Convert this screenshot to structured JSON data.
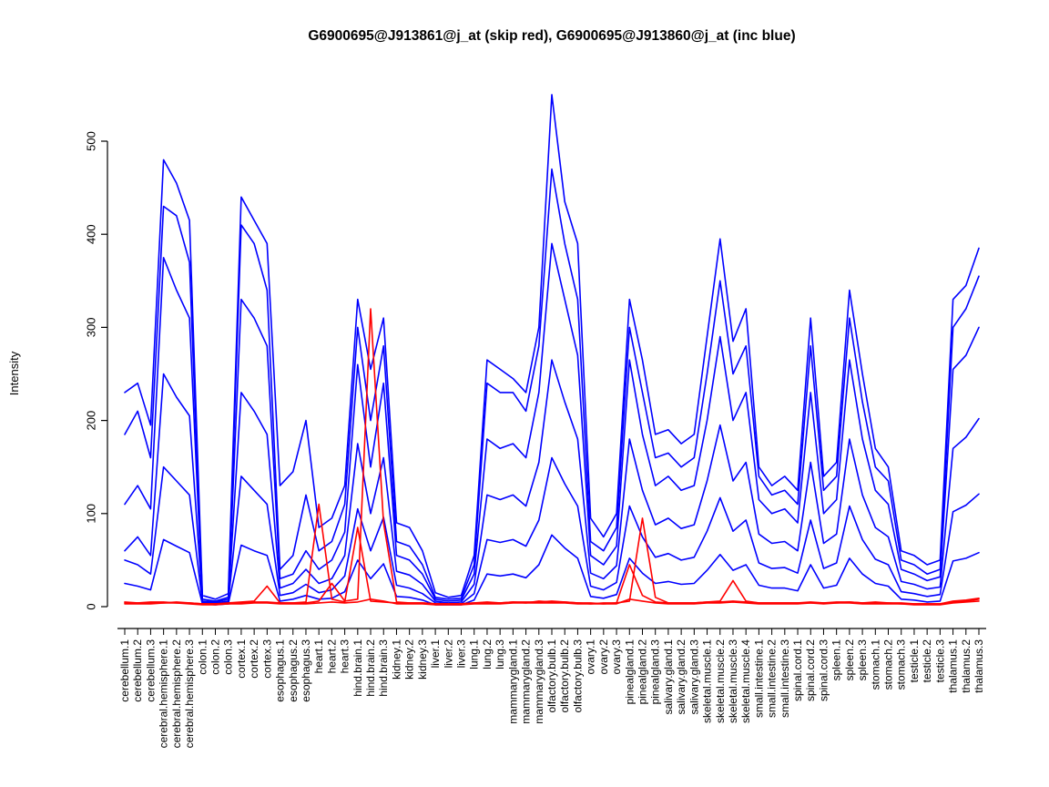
{
  "title": "G6900695@J913861@j_at (skip red), G6900695@J913860@j_at (inc blue)",
  "chart_data": {
    "type": "line",
    "title": "G6900695@J913861@j_at (skip red), G6900695@J913860@j_at (inc blue)",
    "xlabel": "",
    "ylabel": "Intensity",
    "ylim": [
      0,
      550
    ],
    "yticks": [
      0,
      100,
      200,
      300,
      400,
      500
    ],
    "grid": false,
    "legend_position": "none",
    "colors": {
      "skip": "#FF0000",
      "inc": "#0000FF"
    },
    "categories": [
      "cerebellum.1",
      "cerebellum.2",
      "cerebellum.3",
      "cerebral.hemisphere.1",
      "cerebral.hemisphere.2",
      "cerebral.hemisphere.3",
      "colon.1",
      "colon.2",
      "colon.3",
      "cortex.1",
      "cortex.2",
      "cortex.3",
      "esophagus.1",
      "esophagus.2",
      "esophagus.3",
      "heart.1",
      "heart.2",
      "heart.3",
      "hind.brain.1",
      "hind.brain.2",
      "hind.brain.3",
      "kidney.1",
      "kidney.2",
      "kidney.3",
      "liver.1",
      "liver.2",
      "liver.3",
      "lung.1",
      "lung.2",
      "lung.3",
      "mammarygland.1",
      "mammarygland.2",
      "mammarygland.3",
      "olfactory.bulb.1",
      "olfactory.bulb.2",
      "olfactory.bulb.3",
      "ovary.1",
      "ovary.2",
      "ovary.3",
      "pinealgland.1",
      "pinealgland.2",
      "pinealgland.3",
      "salivary.gland.1",
      "salivary.gland.2",
      "salivary.gland.3",
      "skeletal.muscle.1",
      "skeletal.muscle.2",
      "skeletal.muscle.3",
      "skeletal.muscle.4",
      "small.intestine.1",
      "small.intestine.2",
      "small.intestine.3",
      "spinal.cord.1",
      "spinal.cord.2",
      "spinal.cord.3",
      "spleen.1",
      "spleen.2",
      "spleen.3",
      "stomach.1",
      "stomach.2",
      "stomach.3",
      "testicle.1",
      "testicle.2",
      "testicle.3",
      "thalamus.1",
      "thalamus.2",
      "thalamus.3"
    ],
    "series": [
      {
        "name": "inc-1",
        "probe": "G6900695@J913860@j_at",
        "color": "#0000FF",
        "values": [
          230,
          240,
          195,
          480,
          455,
          415,
          12,
          8,
          14,
          440,
          415,
          390,
          130,
          145,
          200,
          85,
          95,
          130,
          330,
          255,
          310,
          90,
          85,
          60,
          15,
          10,
          12,
          55,
          265,
          255,
          245,
          230,
          300,
          550,
          435,
          390,
          95,
          75,
          100,
          330,
          265,
          185,
          190,
          175,
          185,
          290,
          395,
          285,
          320,
          150,
          130,
          140,
          125,
          310,
          140,
          155,
          340,
          250,
          170,
          150,
          60,
          55,
          45,
          50,
          330,
          345,
          385
        ]
      },
      {
        "name": "inc-2",
        "probe": "G6900695@J913860@j_at",
        "color": "#0000FF",
        "values": [
          185,
          210,
          160,
          430,
          420,
          370,
          8,
          6,
          10,
          410,
          390,
          340,
          40,
          55,
          120,
          60,
          70,
          110,
          300,
          200,
          280,
          70,
          65,
          45,
          10,
          8,
          9,
          45,
          240,
          230,
          230,
          210,
          280,
          470,
          390,
          330,
          70,
          60,
          85,
          300,
          230,
          160,
          165,
          150,
          160,
          250,
          350,
          250,
          280,
          140,
          120,
          125,
          110,
          280,
          125,
          140,
          310,
          220,
          150,
          135,
          50,
          45,
          35,
          40,
          300,
          320,
          355
        ]
      },
      {
        "name": "inc-3",
        "probe": "G6900695@J913860@j_at",
        "color": "#0000FF",
        "values": [
          110,
          130,
          105,
          375,
          340,
          310,
          6,
          5,
          8,
          330,
          310,
          280,
          30,
          35,
          60,
          40,
          50,
          80,
          260,
          150,
          240,
          55,
          50,
          35,
          8,
          6,
          7,
          35,
          180,
          170,
          175,
          160,
          230,
          390,
          330,
          270,
          55,
          45,
          65,
          265,
          185,
          130,
          140,
          125,
          130,
          200,
          290,
          200,
          230,
          115,
          100,
          105,
          90,
          230,
          100,
          115,
          265,
          180,
          125,
          110,
          40,
          35,
          28,
          32,
          255,
          270,
          300
        ]
      },
      {
        "name": "inc-4",
        "probe": "G6900695@J913860@j_at",
        "color": "#0000FF",
        "values": [
          60,
          75,
          55,
          250,
          225,
          205,
          5,
          4,
          6,
          230,
          210,
          185,
          20,
          25,
          40,
          25,
          30,
          55,
          175,
          100,
          160,
          38,
          34,
          24,
          6,
          4,
          5,
          24,
          120,
          115,
          120,
          108,
          155,
          265,
          220,
          180,
          36,
          30,
          44,
          180,
          125,
          88,
          95,
          84,
          88,
          135,
          195,
          135,
          155,
          78,
          68,
          70,
          60,
          155,
          68,
          78,
          180,
          120,
          85,
          75,
          27,
          24,
          19,
          21,
          170,
          182,
          202
        ]
      },
      {
        "name": "inc-5",
        "probe": "G6900695@J913860@j_at",
        "color": "#0000FF",
        "values": [
          50,
          45,
          35,
          150,
          135,
          120,
          4,
          3,
          5,
          140,
          125,
          110,
          12,
          15,
          24,
          15,
          18,
          33,
          105,
          60,
          96,
          23,
          20,
          14,
          4,
          3,
          3,
          14,
          72,
          69,
          72,
          65,
          93,
          160,
          132,
          108,
          22,
          18,
          26,
          108,
          75,
          53,
          57,
          50,
          53,
          81,
          117,
          81,
          93,
          47,
          41,
          42,
          36,
          93,
          41,
          47,
          108,
          72,
          51,
          45,
          16,
          14,
          11,
          13,
          102,
          109,
          121
        ]
      },
      {
        "name": "inc-6",
        "probe": "G6900695@J913860@j_at",
        "color": "#0000FF",
        "values": [
          25,
          22,
          18,
          72,
          65,
          58,
          3,
          2,
          3,
          66,
          60,
          55,
          6,
          8,
          12,
          8,
          9,
          16,
          50,
          30,
          46,
          11,
          10,
          7,
          2,
          2,
          2,
          7,
          35,
          33,
          35,
          31,
          45,
          77,
          63,
          52,
          11,
          9,
          13,
          52,
          36,
          25,
          27,
          24,
          25,
          39,
          56,
          39,
          45,
          23,
          20,
          20,
          17,
          45,
          20,
          23,
          52,
          35,
          25,
          22,
          8,
          7,
          5,
          6,
          49,
          52,
          58
        ]
      },
      {
        "name": "skip-1",
        "probe": "G6900695@J913861@j_at",
        "color": "#FF0000",
        "values": [
          4,
          4,
          5,
          5,
          4,
          4,
          3,
          3,
          4,
          5,
          6,
          22,
          4,
          4,
          5,
          110,
          8,
          5,
          85,
          6,
          5,
          4,
          4,
          4,
          3,
          3,
          3,
          4,
          5,
          4,
          5,
          4,
          6,
          5,
          5,
          4,
          4,
          3,
          4,
          6,
          95,
          10,
          4,
          4,
          4,
          5,
          6,
          28,
          6,
          4,
          4,
          4,
          4,
          5,
          4,
          4,
          5,
          4,
          5,
          4,
          4,
          3,
          3,
          3,
          5,
          6,
          8
        ]
      },
      {
        "name": "skip-2",
        "probe": "G6900695@J913861@j_at",
        "color": "#FF0000",
        "values": [
          5,
          4,
          4,
          4,
          5,
          4,
          3,
          3,
          3,
          4,
          5,
          5,
          4,
          4,
          4,
          6,
          25,
          6,
          8,
          320,
          90,
          5,
          4,
          4,
          3,
          3,
          3,
          4,
          4,
          4,
          5,
          5,
          5,
          6,
          5,
          4,
          3,
          4,
          4,
          45,
          12,
          5,
          4,
          4,
          4,
          5,
          5,
          6,
          5,
          4,
          4,
          4,
          4,
          4,
          4,
          5,
          5,
          4,
          4,
          4,
          3,
          3,
          3,
          3,
          6,
          7,
          9
        ]
      },
      {
        "name": "skip-3",
        "probe": "G6900695@J913861@j_at",
        "color": "#FF0000",
        "values": [
          3,
          3,
          3,
          4,
          4,
          3,
          2,
          2,
          3,
          3,
          4,
          4,
          3,
          3,
          3,
          4,
          5,
          4,
          5,
          8,
          6,
          3,
          3,
          3,
          2,
          2,
          2,
          3,
          3,
          3,
          4,
          4,
          4,
          4,
          4,
          3,
          3,
          3,
          3,
          8,
          6,
          4,
          3,
          3,
          3,
          4,
          4,
          5,
          4,
          3,
          3,
          3,
          3,
          4,
          3,
          4,
          4,
          3,
          3,
          3,
          3,
          2,
          2,
          2,
          4,
          5,
          6
        ]
      }
    ]
  }
}
